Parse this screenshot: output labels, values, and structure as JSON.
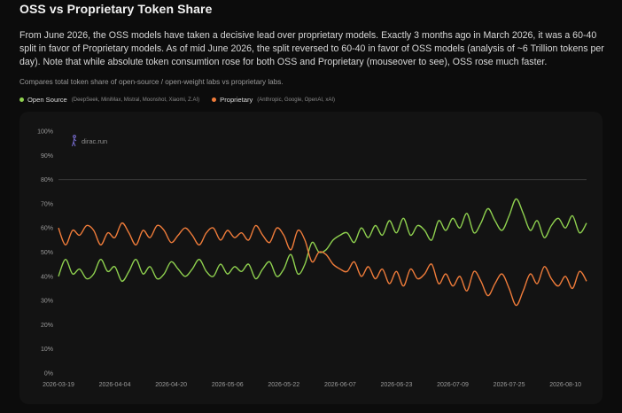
{
  "title": "OSS vs Proprietary Token Share",
  "description": "From June 2026, the OSS models have taken a decisive lead over proprietary models. Exactly 3 months ago in March 2026, it was a 60-40 split in favor of Proprietary models. As of mid June 2026, the split reversed to 60-40 in favor of OSS models (analysis of ~6 Trillion tokens per day). Note that while absolute token consumtion rose for both OSS and Proprietary (mouseover to see), OSS rose much faster.",
  "subtitle": "Compares total token share of open-source / open-weight labs vs proprietary labs.",
  "legend": [
    {
      "label": "Open Source",
      "note": "(DeepSeek, MiniMax, Mistral, Moonshot, Xiaomi, Z.AI)",
      "color": "#8fd14f"
    },
    {
      "label": "Proprietary",
      "note": "(Anthropic, Google, OpenAI, xAI)",
      "color": "#f07c3a"
    }
  ],
  "watermark": "dirac.run",
  "chart_data": {
    "type": "line",
    "title": "OSS vs Proprietary Token Share",
    "ylabel": "",
    "xlabel": "",
    "ylim": [
      0,
      100
    ],
    "yticks": [
      "0%",
      "10%",
      "20%",
      "30%",
      "40%",
      "50%",
      "60%",
      "70%",
      "80%",
      "90%",
      "100%"
    ],
    "xtick_labels": [
      "2026-03-19",
      "2026-04-04",
      "2026-04-20",
      "2026-05-06",
      "2026-05-22",
      "2026-06-07",
      "2026-06-23",
      "2026-07-09",
      "2026-07-25",
      "2026-08-10"
    ],
    "grid": false,
    "legend_position": "top-left",
    "reference_line": 80,
    "x": [
      "2026-03-19",
      "2026-03-21",
      "2026-03-23",
      "2026-03-25",
      "2026-03-27",
      "2026-03-29",
      "2026-03-31",
      "2026-04-02",
      "2026-04-04",
      "2026-04-06",
      "2026-04-08",
      "2026-04-10",
      "2026-04-12",
      "2026-04-14",
      "2026-04-16",
      "2026-04-18",
      "2026-04-20",
      "2026-04-22",
      "2026-04-24",
      "2026-04-26",
      "2026-04-28",
      "2026-04-30",
      "2026-05-02",
      "2026-05-04",
      "2026-05-06",
      "2026-05-08",
      "2026-05-10",
      "2026-05-12",
      "2026-05-14",
      "2026-05-16",
      "2026-05-18",
      "2026-05-20",
      "2026-05-22",
      "2026-05-24",
      "2026-05-26",
      "2026-05-28",
      "2026-05-30",
      "2026-06-01",
      "2026-06-03",
      "2026-06-05",
      "2026-06-07",
      "2026-06-09",
      "2026-06-11",
      "2026-06-13",
      "2026-06-15",
      "2026-06-17",
      "2026-06-19",
      "2026-06-21",
      "2026-06-23",
      "2026-06-25",
      "2026-06-27",
      "2026-06-29",
      "2026-07-01",
      "2026-07-03",
      "2026-07-05",
      "2026-07-07",
      "2026-07-09",
      "2026-07-11",
      "2026-07-13",
      "2026-07-15",
      "2026-07-17",
      "2026-07-19",
      "2026-07-21",
      "2026-07-23",
      "2026-07-25",
      "2026-07-27",
      "2026-07-29",
      "2026-07-31",
      "2026-08-02",
      "2026-08-04",
      "2026-08-06",
      "2026-08-08",
      "2026-08-10",
      "2026-08-12",
      "2026-08-14",
      "2026-08-16"
    ],
    "series": [
      {
        "name": "Open Source",
        "color": "#8fd14f",
        "values": [
          40,
          47,
          41,
          43,
          39,
          41,
          47,
          42,
          44,
          38,
          42,
          47,
          41,
          44,
          39,
          41,
          46,
          43,
          40,
          43,
          47,
          42,
          40,
          45,
          41,
          44,
          42,
          45,
          39,
          43,
          46,
          40,
          43,
          49,
          41,
          45,
          54,
          50,
          51,
          55,
          57,
          58,
          54,
          60,
          56,
          61,
          57,
          63,
          58,
          64,
          57,
          61,
          59,
          55,
          63,
          59,
          64,
          60,
          66,
          58,
          62,
          68,
          63,
          59,
          65,
          72,
          66,
          59,
          63,
          56,
          61,
          64,
          60,
          65,
          58,
          62
        ]
      },
      {
        "name": "Proprietary",
        "color": "#f07c3a",
        "values": [
          60,
          53,
          59,
          57,
          61,
          59,
          53,
          58,
          56,
          62,
          58,
          53,
          59,
          56,
          61,
          59,
          54,
          57,
          60,
          57,
          53,
          58,
          60,
          55,
          59,
          56,
          58,
          55,
          61,
          57,
          54,
          60,
          57,
          51,
          59,
          55,
          46,
          50,
          49,
          45,
          43,
          42,
          46,
          40,
          44,
          39,
          43,
          37,
          42,
          36,
          43,
          39,
          41,
          45,
          37,
          41,
          36,
          40,
          34,
          42,
          38,
          32,
          37,
          41,
          35,
          28,
          34,
          41,
          37,
          44,
          39,
          36,
          40,
          35,
          42,
          38
        ]
      }
    ]
  }
}
